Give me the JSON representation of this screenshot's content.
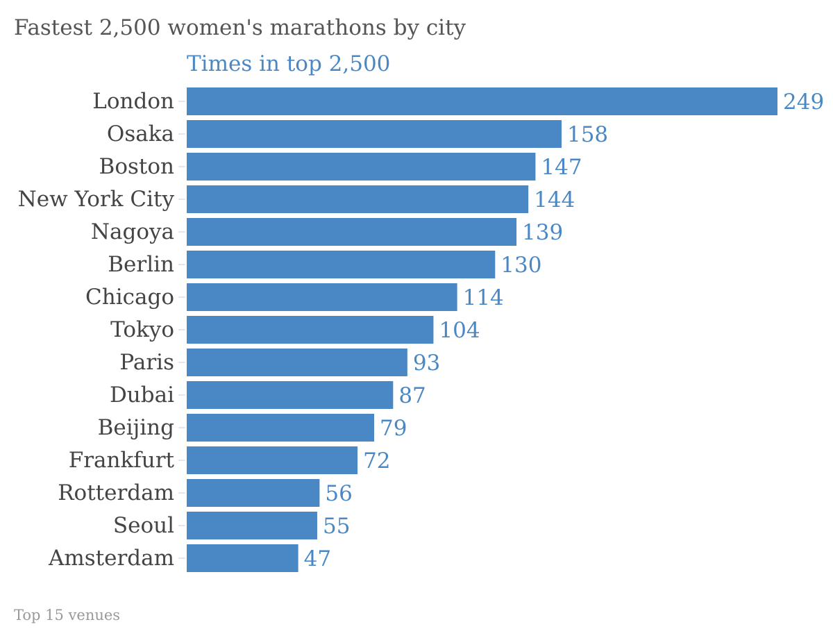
{
  "title": "Fastest 2,500 women's marathons by city",
  "footer": "Top 15 venues",
  "chart_data": {
    "type": "bar",
    "orientation": "horizontal",
    "title": "Fastest 2,500 women's marathons by city",
    "categories": [
      "London",
      "Osaka",
      "Boston",
      "New York City",
      "Nagoya",
      "Berlin",
      "Chicago",
      "Tokyo",
      "Paris",
      "Dubai",
      "Beijing",
      "Frankfurt",
      "Rotterdam",
      "Seoul",
      "Amsterdam"
    ],
    "series": [
      {
        "name": "Times in top 2,500",
        "values": [
          249,
          158,
          147,
          144,
          139,
          130,
          114,
          104,
          93,
          87,
          79,
          72,
          56,
          55,
          47
        ]
      }
    ],
    "xlim": [
      0,
      249
    ],
    "grid": false,
    "bar_color": "#4a88c5",
    "label_color": "#4a88c5"
  }
}
